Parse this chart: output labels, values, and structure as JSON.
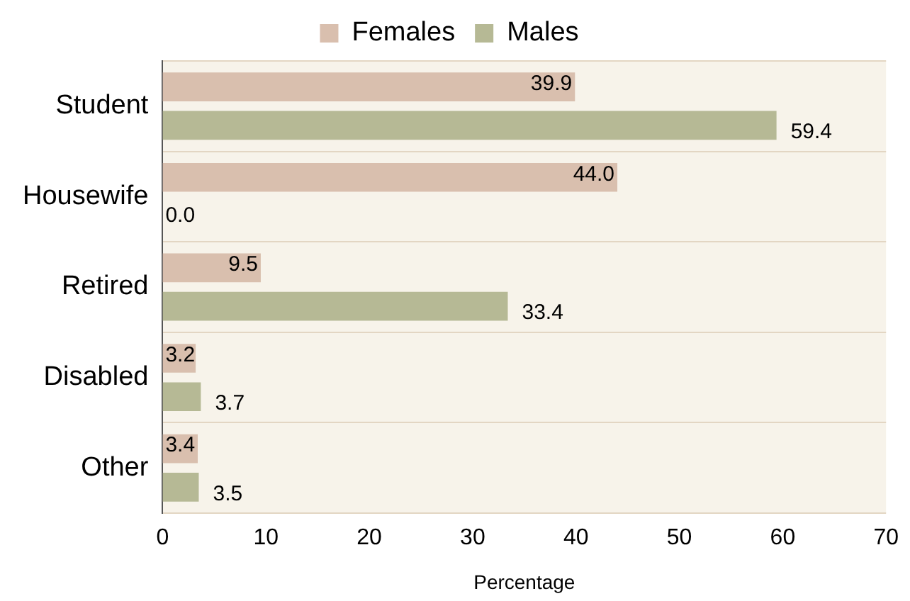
{
  "chart_data": {
    "type": "bar",
    "orientation": "horizontal",
    "xlabel": "Percentage",
    "categories": [
      "Student",
      "Housewife",
      "Retired",
      "Disabled",
      "Other"
    ],
    "series": [
      {
        "name": "Females",
        "color": "#d9bfae",
        "values": [
          39.9,
          44.0,
          9.5,
          3.2,
          3.4
        ],
        "value_labels": [
          "39.9",
          "44.0",
          "9.5",
          "3.2",
          "3.4"
        ]
      },
      {
        "name": "Males",
        "color": "#b6b995",
        "values": [
          59.4,
          0.0,
          33.4,
          3.7,
          3.5
        ],
        "value_labels": [
          "59.4",
          "0.0",
          "33.4",
          "3.7",
          "3.5"
        ]
      }
    ],
    "xlim": [
      0,
      70
    ],
    "xticks": [
      0,
      10,
      20,
      30,
      40,
      50,
      60,
      70
    ],
    "grid": "y",
    "legend": "top"
  }
}
